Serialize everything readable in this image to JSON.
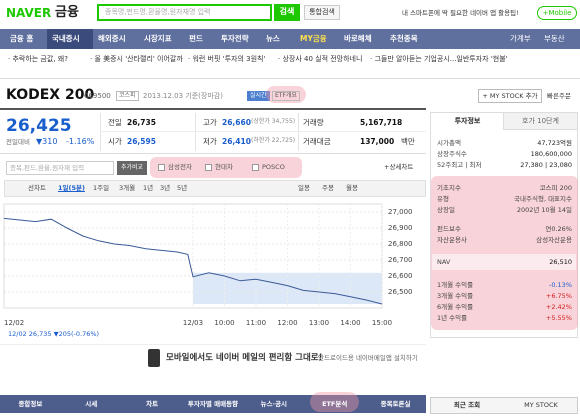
{
  "header": {
    "logo": "NAVER",
    "logo_sub": "금융",
    "search_placeholder": "종목명,펀드명,환율명,원자재명 입력",
    "search_button": "검색",
    "integrated_search": "통합검색",
    "promo": "내 스마트폰에 딱 필요한 네이버 앱 활용팁!",
    "mobile": "+Mobile"
  },
  "nav": {
    "items": [
      "금융 홈",
      "국내증시",
      "해외증시",
      "시장지표",
      "펀드",
      "투자전략",
      "뉴스",
      "MY금융",
      "바로해체",
      "추천종목"
    ],
    "right": [
      "가계부",
      "부동산"
    ]
  },
  "news": [
    "· 추락하는 금값, 왜?",
    "· 올 美증시 '산타랠리' 이어갈까",
    "· 워런 버핏 '투자의 3원칙'",
    "· 상장사 40 실적 전망하네니",
    "· 그들만 알아듣는 기업공시...일반투자자 '현불'"
  ],
  "stock": {
    "name": "KODEX 200",
    "code": "069500",
    "market": "코스피",
    "date": "2013.12.03 기준(장마감)",
    "realtime": "실시간",
    "etf_overview": "ETF개요",
    "add_mystock": "+ MY STOCK 추가",
    "quick_order": "빠른주문",
    "price": "26,425",
    "change_label": "전일대비",
    "change": "▼310",
    "change_pct": "-1.16%"
  },
  "quote_table": {
    "rows": [
      [
        "전일",
        "26,735",
        "고가",
        "26,660",
        "(상한가 34,755)",
        "거래량",
        "5,167,718"
      ],
      [
        "시가",
        "26,595",
        "저가",
        "26,410",
        "(하한가 22,725)",
        "거래대금",
        "137,000",
        "백만"
      ]
    ]
  },
  "compare": {
    "placeholder": "종목,펀드,환율,원자재 입력",
    "button": "추가비교",
    "items": [
      "삼성전자",
      "현대차",
      "POSCO"
    ],
    "detail": "+상세차트"
  },
  "chart_tabs": {
    "left": [
      "선차트",
      "1일(5분)",
      "1주일",
      "3개월",
      "1년",
      "3년",
      "5년"
    ],
    "right": [
      "일봉",
      "주봉",
      "월봉"
    ]
  },
  "chart_data": {
    "type": "line",
    "color": "#3c5a98",
    "x": [
      0,
      30,
      60,
      90,
      120,
      150,
      180,
      210,
      240,
      270,
      300,
      330,
      350,
      360,
      390,
      420,
      450,
      480,
      510,
      540,
      570,
      600,
      630,
      660,
      690,
      720
    ],
    "values": [
      26960,
      26950,
      26940,
      26955,
      26900,
      26850,
      26820,
      26800,
      26790,
      26770,
      26760,
      26750,
      26735,
      26595,
      26620,
      26600,
      26570,
      26580,
      26560,
      26540,
      26510,
      26500,
      26490,
      26470,
      26450,
      26425
    ],
    "xlim": [
      0,
      720
    ],
    "ylim": [
      26400,
      27050
    ],
    "xticks": [
      {
        "value": 0,
        "label": "12/02"
      },
      {
        "value": 360,
        "label": "12/03"
      },
      {
        "value": 420,
        "label": "10:00"
      },
      {
        "value": 480,
        "label": "11:00"
      },
      {
        "value": 540,
        "label": "12:00"
      },
      {
        "value": 600,
        "label": "13:00"
      },
      {
        "value": 660,
        "label": "14:00"
      },
      {
        "value": 720,
        "label": "15:00"
      }
    ],
    "yticks": [
      {
        "value": 27000,
        "label": "27,000"
      },
      {
        "value": 26900,
        "label": "26,900"
      },
      {
        "value": 26800,
        "label": "26,800"
      },
      {
        "value": 26700,
        "label": "26,700"
      },
      {
        "value": 26600,
        "label": "26,600"
      },
      {
        "value": 26500,
        "label": "26,500"
      }
    ],
    "grid": true
  },
  "chart_footer": "12/02  26,735 ▼205(-0.76%)",
  "banner": {
    "text1": "모바일에서도 네이버 메일의 편리함 그대로!",
    "text2": "안드로이드용 네이버메일앱 설치하기"
  },
  "bottom_tabs": [
    "종합정보",
    "시세",
    "차트",
    "투자자별 매매동향",
    "뉴스·공시",
    "ETF분석",
    "종목토론실"
  ],
  "side": {
    "tabs": [
      "투자정보",
      "호가 10단계"
    ],
    "summary": [
      [
        "시가총액",
        "47,723억원"
      ],
      [
        "상장주식수",
        "180,600,000"
      ],
      [
        "52주최고 | 최저",
        "27,380 | 23,080"
      ]
    ],
    "etf": [
      [
        "기초지수",
        "코스피 200"
      ],
      [
        "유형",
        "국내주식형, 대표지수"
      ],
      [
        "상장일",
        "2002년 10월 14일"
      ],
      [
        "펀드보수",
        "연0.26%"
      ],
      [
        "자산운용사",
        "삼성자산운용"
      ]
    ],
    "nav": [
      "NAV",
      "26,510"
    ],
    "returns": [
      [
        "1개월 수익률",
        "-0.13%"
      ],
      [
        "3개월 수익률",
        "+6.75%"
      ],
      [
        "6개월 수익률",
        "+2.42%"
      ],
      [
        "1년 수익률",
        "+5.55%"
      ]
    ],
    "bottom_tabs": [
      "최근 조회",
      "MY STOCK"
    ]
  }
}
